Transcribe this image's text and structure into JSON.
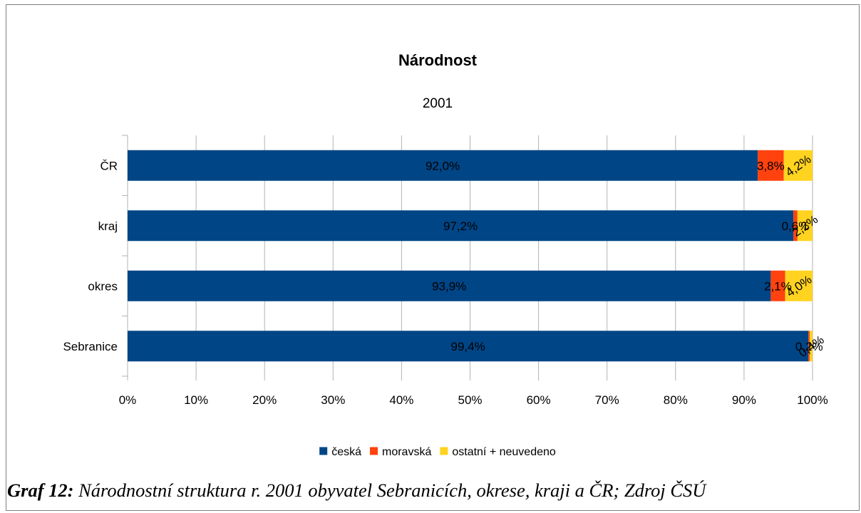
{
  "chart_data": {
    "type": "bar",
    "orientation": "horizontal",
    "stacked": "percent",
    "title": "Národnost",
    "subtitle": "2001",
    "categories": [
      "ČR",
      "kraj",
      "okres",
      "Sebranice"
    ],
    "series": [
      {
        "name": "česká",
        "color": "#004586",
        "values": [
          92.0,
          97.2,
          93.9,
          99.4
        ],
        "labels": [
          "92,0%",
          "97,2%",
          "93,9%",
          "99,4%"
        ]
      },
      {
        "name": "moravská",
        "color": "#ff420e",
        "values": [
          3.8,
          0.6,
          2.1,
          0.2
        ],
        "labels": [
          "3,8%",
          "0,6%",
          "2,1%",
          "0,2%"
        ]
      },
      {
        "name": "ostatní + neuvedeno",
        "color": "#ffd320",
        "values": [
          4.2,
          2.2,
          4.0,
          0.4
        ],
        "labels": [
          "4,2%",
          "2,2%",
          "4,0%",
          "0,4%"
        ]
      }
    ],
    "xaxis": {
      "ticks": [
        "0%",
        "10%",
        "20%",
        "30%",
        "40%",
        "50%",
        "60%",
        "70%",
        "80%",
        "90%",
        "100%"
      ],
      "range": [
        0,
        100
      ]
    },
    "grid": true,
    "legend_position": "bottom"
  },
  "caption": {
    "label": "Graf 12:",
    "text": " Národnostní struktura r. 2001 obyvatel Sebranicích, okrese, kraji a ČR; Zdroj ČSÚ"
  }
}
